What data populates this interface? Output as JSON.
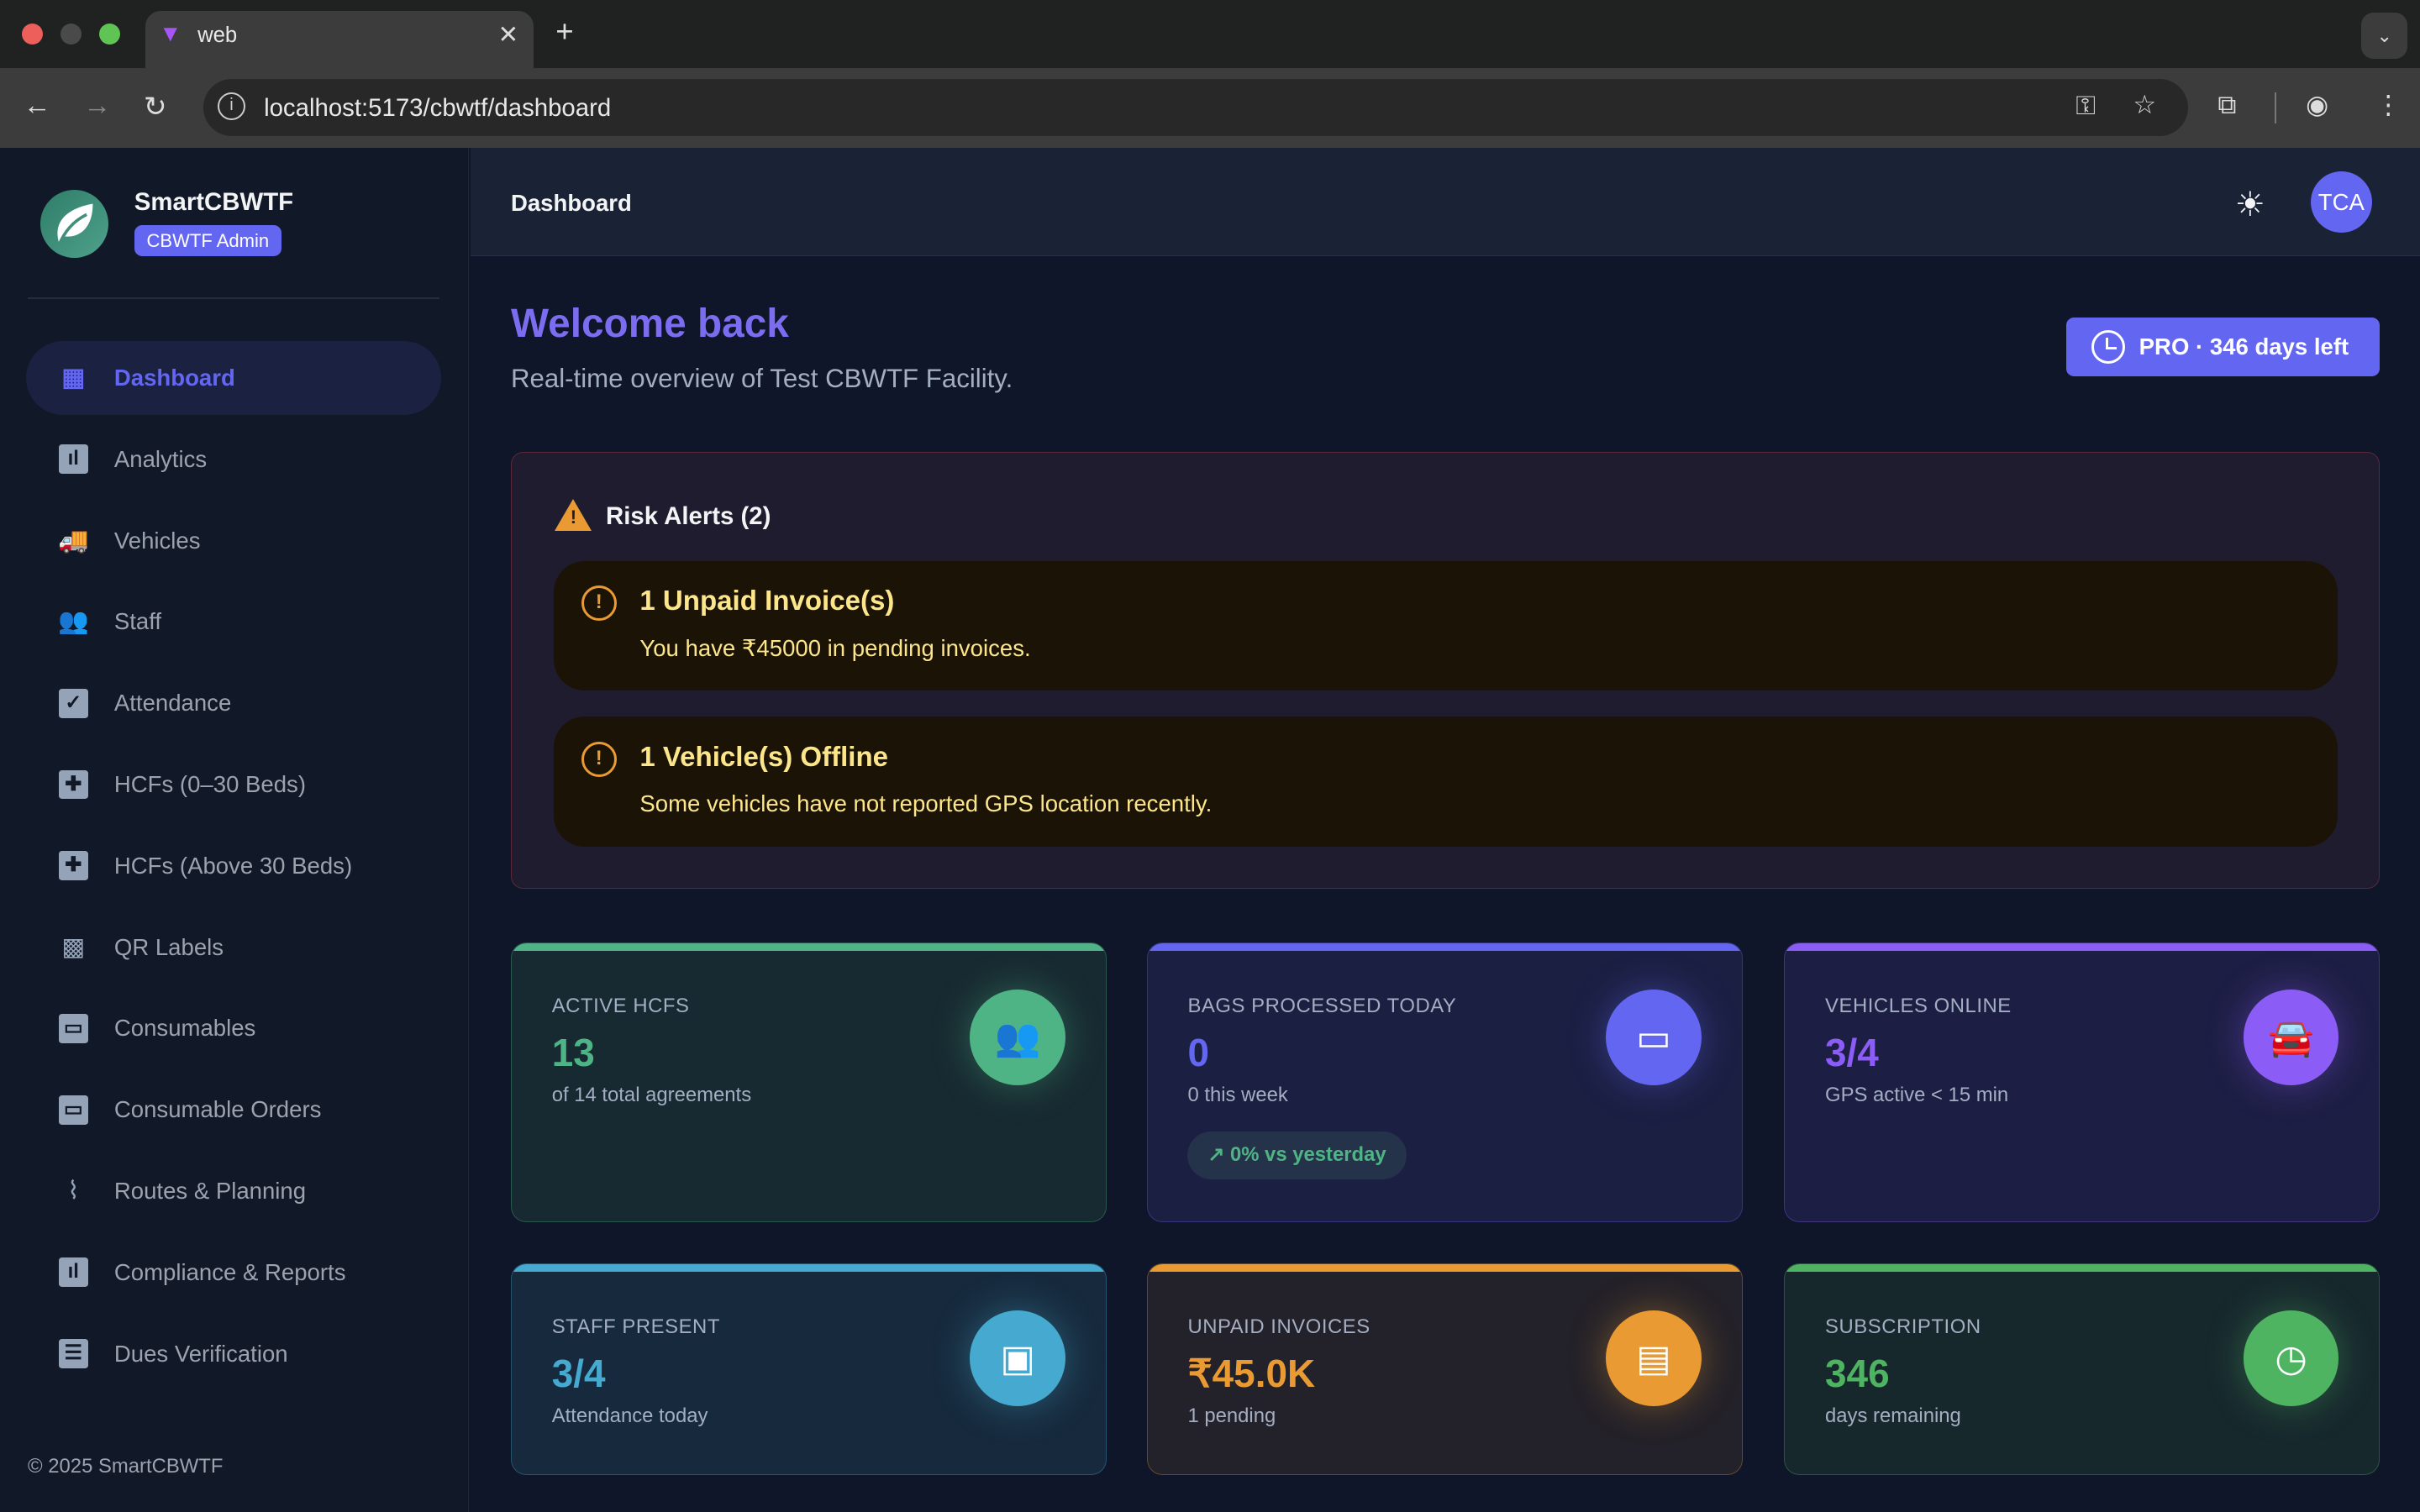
{
  "browser": {
    "tab_title": "web",
    "url": "localhost:5173/cbwtf/dashboard"
  },
  "sidebar": {
    "brand": "SmartCBWTF",
    "role": "CBWTF Admin",
    "items": [
      {
        "label": "Dashboard",
        "icon": "dashboard-icon",
        "active": true
      },
      {
        "label": "Analytics",
        "icon": "analytics-icon"
      },
      {
        "label": "Vehicles",
        "icon": "truck-icon"
      },
      {
        "label": "Staff",
        "icon": "people-icon"
      },
      {
        "label": "Attendance",
        "icon": "calendar-check-icon"
      },
      {
        "label": "HCFs (0–30 Beds)",
        "icon": "medical-plus-icon"
      },
      {
        "label": "HCFs (Above 30 Beds)",
        "icon": "medical-plus-icon"
      },
      {
        "label": "QR Labels",
        "icon": "qr-code-icon"
      },
      {
        "label": "Consumables",
        "icon": "archive-box-icon"
      },
      {
        "label": "Consumable Orders",
        "icon": "archive-box-icon"
      },
      {
        "label": "Routes & Planning",
        "icon": "route-icon"
      },
      {
        "label": "Compliance & Reports",
        "icon": "report-icon"
      },
      {
        "label": "Dues Verification",
        "icon": "checklist-icon"
      }
    ],
    "footer": "© 2025 SmartCBWTF"
  },
  "header": {
    "title": "Dashboard",
    "avatar": "TCA"
  },
  "welcome": {
    "title": "Welcome back",
    "subtitle": "Real-time overview of Test CBWTF Facility.",
    "pro_badge": "PRO · 346 days left"
  },
  "risk": {
    "title": "Risk Alerts (2)",
    "alerts": [
      {
        "title": "1 Unpaid Invoice(s)",
        "desc": "You have ₹45000 in pending invoices."
      },
      {
        "title": "1 Vehicle(s) Offline",
        "desc": "Some vehicles have not reported GPS location recently."
      }
    ]
  },
  "cards": [
    {
      "label": "ACTIVE HCFS",
      "value": "13",
      "note": "of 14 total agreements",
      "color": "#4fb485"
    },
    {
      "label": "BAGS PROCESSED TODAY",
      "value": "0",
      "note": "0 this week",
      "trend": "0% vs yesterday",
      "color": "#6366f1"
    },
    {
      "label": "VEHICLES ONLINE",
      "value": "3/4",
      "note": "GPS active < 15 min",
      "color": "#8b5cf6"
    },
    {
      "label": "STAFF PRESENT",
      "value": "3/4",
      "note": "Attendance today",
      "color": "#46a9cf"
    },
    {
      "label": "UNPAID INVOICES",
      "value": "₹45.0K",
      "note": "1 pending",
      "color": "#e99a32"
    },
    {
      "label": "SUBSCRIPTION",
      "value": "346",
      "note": "days remaining",
      "color": "#4fb462"
    }
  ]
}
